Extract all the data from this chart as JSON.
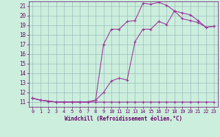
{
  "background_color": "#cceedd",
  "grid_color": "#99bbbb",
  "line_color": "#993399",
  "marker_color": "#993399",
  "xlabel": "Windchill (Refroidissement éolien,°C)",
  "xlabel_color": "#660066",
  "tick_color": "#660066",
  "xlim": [
    -0.5,
    23.5
  ],
  "ylim": [
    10.5,
    21.5
  ],
  "yticks": [
    11,
    12,
    13,
    14,
    15,
    16,
    17,
    18,
    19,
    20,
    21
  ],
  "xticks": [
    0,
    1,
    2,
    3,
    4,
    5,
    6,
    7,
    8,
    9,
    10,
    11,
    12,
    13,
    14,
    15,
    16,
    17,
    18,
    19,
    20,
    21,
    22,
    23
  ],
  "curve1_x": [
    0,
    1,
    2,
    3,
    4,
    5,
    6,
    7,
    8,
    9,
    10,
    11,
    12,
    13,
    14,
    15,
    16,
    17,
    18,
    19,
    20,
    21,
    22,
    23
  ],
  "curve1_y": [
    11.4,
    11.2,
    11.1,
    11.0,
    11.0,
    11.0,
    11.0,
    11.0,
    11.0,
    11.0,
    11.0,
    11.0,
    11.0,
    11.0,
    11.0,
    11.0,
    11.0,
    11.0,
    11.0,
    11.0,
    11.0,
    11.0,
    11.0,
    11.0
  ],
  "curve2_x": [
    0,
    1,
    2,
    3,
    4,
    5,
    6,
    7,
    8,
    9,
    10,
    11,
    12,
    13,
    14,
    15,
    16,
    17,
    18,
    19,
    20,
    21,
    22,
    23
  ],
  "curve2_y": [
    11.4,
    11.2,
    11.1,
    11.0,
    11.0,
    11.0,
    11.0,
    11.0,
    11.2,
    12.0,
    13.2,
    13.5,
    13.3,
    17.3,
    18.6,
    18.6,
    19.4,
    19.1,
    20.5,
    20.3,
    20.1,
    19.5,
    18.8,
    18.9
  ],
  "curve3_x": [
    0,
    1,
    2,
    3,
    4,
    5,
    6,
    7,
    8,
    9,
    10,
    11,
    12,
    13,
    14,
    15,
    16,
    17,
    18,
    19,
    20,
    21,
    22,
    23
  ],
  "curve3_y": [
    11.4,
    11.2,
    11.1,
    11.0,
    11.0,
    11.0,
    11.0,
    11.0,
    11.2,
    17.0,
    18.6,
    18.6,
    19.4,
    19.5,
    21.3,
    21.2,
    21.4,
    21.1,
    20.5,
    19.7,
    19.5,
    19.3,
    18.8,
    18.9
  ]
}
